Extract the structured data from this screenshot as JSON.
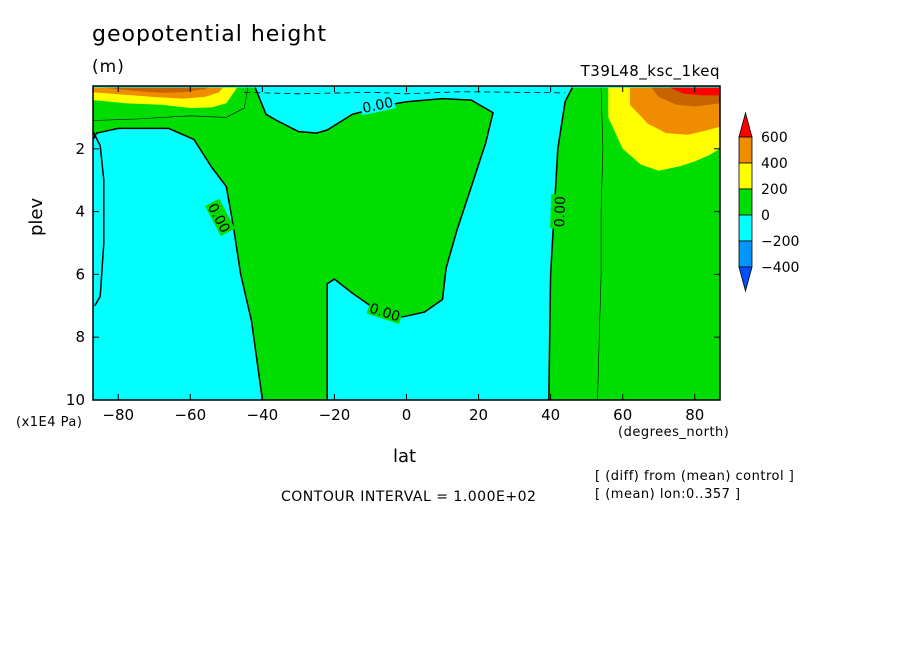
{
  "chart_data": {
    "type": "contour",
    "title": "geopotential height",
    "units": "(m)",
    "dataset": "T39L48_ksc_1keq",
    "xlabel": "lat",
    "x_units": "(degrees_north)",
    "ylabel": "plev",
    "y_units": "(x1E4 Pa)",
    "xlim": [
      -87,
      87
    ],
    "ylim": [
      10,
      0
    ],
    "x_ticks": [
      -80,
      -60,
      -40,
      -20,
      0,
      20,
      40,
      60,
      80
    ],
    "y_ticks": [
      2,
      4,
      6,
      8,
      10
    ],
    "contour_interval": "CONTOUR INTERVAL = 1.000E+02",
    "contour_labels": [
      "0.00",
      "0.00",
      "0.00",
      "0.00"
    ],
    "notes": [
      "[ (diff) from (mean) control ]",
      "[ (mean) lon:0..357 ]"
    ],
    "legend": {
      "levels": [
        600,
        400,
        200,
        0,
        -200,
        -400
      ],
      "labels": [
        "600",
        "400",
        "200",
        "0",
        "−200",
        "−400"
      ],
      "colors": [
        "#ff0000",
        "#f08c00",
        "#ffff00",
        "#00dd00",
        "#00ffff",
        "#0096ff",
        "#0050ff"
      ]
    },
    "fill_colors": {
      "negative": "#00ffff",
      "zero_to_200": "#00dd00",
      "200_to_400": "#ffff00",
      "400_to_600": "#f08c00",
      "600_to_800": "#c86400",
      "above_800": "#ff0000"
    },
    "regions": [
      {
        "level": "zero_to_200",
        "points": [
          [
            -87,
            0.05
          ],
          [
            -87,
            1.7
          ],
          [
            -86,
            1.5
          ],
          [
            -80,
            1.35
          ],
          [
            -66,
            1.35
          ],
          [
            -59,
            1.7
          ],
          [
            -54,
            2.6
          ],
          [
            -50,
            3.2
          ],
          [
            -48,
            4.5
          ],
          [
            -46,
            6.0
          ],
          [
            -43,
            7.5
          ],
          [
            -40,
            10
          ],
          [
            -22,
            10
          ],
          [
            -22,
            6.3
          ],
          [
            -20,
            6.15
          ],
          [
            -15,
            6.6
          ],
          [
            -10,
            7.0
          ],
          [
            -5,
            7.3
          ],
          [
            -1,
            7.35
          ],
          [
            5,
            7.2
          ],
          [
            10,
            6.8
          ],
          [
            11,
            5.8
          ],
          [
            14,
            4.6
          ],
          [
            18,
            3.2
          ],
          [
            22,
            1.8
          ],
          [
            24,
            0.85
          ],
          [
            18,
            0.45
          ],
          [
            10,
            0.4
          ],
          [
            0,
            0.5
          ],
          [
            -5,
            0.6
          ],
          [
            -15,
            0.9
          ],
          [
            -22,
            1.4
          ],
          [
            -25,
            1.5
          ],
          [
            -30,
            1.45
          ],
          [
            -36,
            1.1
          ],
          [
            -39,
            0.9
          ],
          [
            -42,
            0.05
          ]
        ]
      },
      {
        "level": "zero_to_200",
        "points": [
          [
            46,
            0.05
          ],
          [
            44,
            0.5
          ],
          [
            42,
            2.0
          ],
          [
            40,
            6.0
          ],
          [
            39.5,
            10
          ],
          [
            87,
            10
          ],
          [
            87,
            0.05
          ]
        ]
      },
      {
        "level": "200_to_400",
        "points": [
          [
            -87,
            0.05
          ],
          [
            -87,
            0.45
          ],
          [
            -78,
            0.55
          ],
          [
            -68,
            0.6
          ],
          [
            -60,
            0.7
          ],
          [
            -54,
            0.68
          ],
          [
            -50,
            0.55
          ],
          [
            -47,
            0.05
          ]
        ]
      },
      {
        "level": "400_to_600",
        "points": [
          [
            -87,
            0.05
          ],
          [
            -87,
            0.2
          ],
          [
            -78,
            0.28
          ],
          [
            -70,
            0.35
          ],
          [
            -62,
            0.4
          ],
          [
            -56,
            0.35
          ],
          [
            -52,
            0.2
          ],
          [
            -51,
            0.05
          ]
        ]
      },
      {
        "level": "600_to_800",
        "points": [
          [
            -84,
            0.05
          ],
          [
            -76,
            0.15
          ],
          [
            -68,
            0.22
          ],
          [
            -62,
            0.2
          ],
          [
            -56,
            0.1
          ],
          [
            -55,
            0.05
          ]
        ]
      },
      {
        "level": "200_to_400",
        "points": [
          [
            56,
            0.05
          ],
          [
            56,
            1.0
          ],
          [
            60,
            2.0
          ],
          [
            65,
            2.5
          ],
          [
            70,
            2.7
          ],
          [
            76,
            2.55
          ],
          [
            80,
            2.4
          ],
          [
            84,
            2.2
          ],
          [
            87,
            2.0
          ],
          [
            87,
            0.05
          ]
        ]
      },
      {
        "level": "400_to_600",
        "points": [
          [
            62,
            0.05
          ],
          [
            62,
            0.6
          ],
          [
            67,
            1.2
          ],
          [
            72,
            1.5
          ],
          [
            78,
            1.55
          ],
          [
            82,
            1.45
          ],
          [
            87,
            1.3
          ],
          [
            87,
            0.05
          ]
        ]
      },
      {
        "level": "600_to_800",
        "points": [
          [
            68,
            0.05
          ],
          [
            70,
            0.35
          ],
          [
            75,
            0.6
          ],
          [
            80,
            0.65
          ],
          [
            84,
            0.6
          ],
          [
            87,
            0.55
          ],
          [
            87,
            0.05
          ]
        ]
      },
      {
        "level": "above_800",
        "points": [
          [
            73,
            0.05
          ],
          [
            77,
            0.25
          ],
          [
            82,
            0.3
          ],
          [
            87,
            0.3
          ],
          [
            87,
            0.05
          ]
        ]
      }
    ],
    "zero_contours": [
      [
        [
          -86.5,
          7.0
        ],
        [
          -85,
          6.7
        ],
        [
          -84,
          5.0
        ],
        [
          -84,
          3.0
        ],
        [
          -85,
          1.9
        ],
        [
          -87,
          1.45
        ]
      ],
      [
        [
          -59,
          1.7
        ],
        [
          -54,
          2.6
        ],
        [
          -50,
          3.2
        ],
        [
          -48,
          4.5
        ],
        [
          -46,
          6.0
        ],
        [
          -43,
          7.5
        ],
        [
          -40,
          10
        ]
      ],
      [
        [
          -22,
          10
        ],
        [
          -22,
          6.3
        ],
        [
          -20,
          6.15
        ],
        [
          -15,
          6.6
        ],
        [
          -10,
          7.0
        ],
        [
          -5,
          7.3
        ],
        [
          -1,
          7.35
        ],
        [
          5,
          7.2
        ],
        [
          10,
          6.8
        ],
        [
          11,
          5.8
        ],
        [
          14,
          4.6
        ],
        [
          18,
          3.2
        ],
        [
          22,
          1.8
        ],
        [
          24,
          0.85
        ],
        [
          18,
          0.45
        ],
        [
          10,
          0.4
        ],
        [
          0,
          0.5
        ],
        [
          -5,
          0.6
        ],
        [
          -15,
          0.9
        ],
        [
          -22,
          1.4
        ],
        [
          -25,
          1.5
        ],
        [
          -30,
          1.45
        ],
        [
          -36,
          1.1
        ],
        [
          -39,
          0.9
        ],
        [
          -42,
          0.05
        ]
      ],
      [
        [
          46,
          0.05
        ],
        [
          44,
          0.5
        ],
        [
          42,
          2.0
        ],
        [
          40,
          6.0
        ],
        [
          39.5,
          10
        ]
      ],
      [
        [
          -87,
          1.7
        ],
        [
          -86,
          1.5
        ],
        [
          -80,
          1.35
        ],
        [
          -66,
          1.35
        ],
        [
          -59,
          1.7
        ]
      ]
    ],
    "thin_contours": [
      [
        [
          54,
          0.05
        ],
        [
          54.5,
          2.0
        ],
        [
          54,
          4.0
        ],
        [
          54,
          6.0
        ],
        [
          53,
          10
        ]
      ],
      [
        [
          -87,
          1.1
        ],
        [
          -75,
          1.05
        ],
        [
          -60,
          0.95
        ],
        [
          -50,
          1.0
        ],
        [
          -45,
          0.7
        ],
        [
          -44,
          0.05
        ]
      ]
    ],
    "dashed_contours": [
      [
        [
          -45,
          0.2
        ],
        [
          -30,
          0.25
        ],
        [
          -10,
          0.2
        ],
        [
          0,
          0.25
        ],
        [
          15,
          0.18
        ],
        [
          30,
          0.2
        ],
        [
          44,
          0.22
        ]
      ]
    ]
  }
}
